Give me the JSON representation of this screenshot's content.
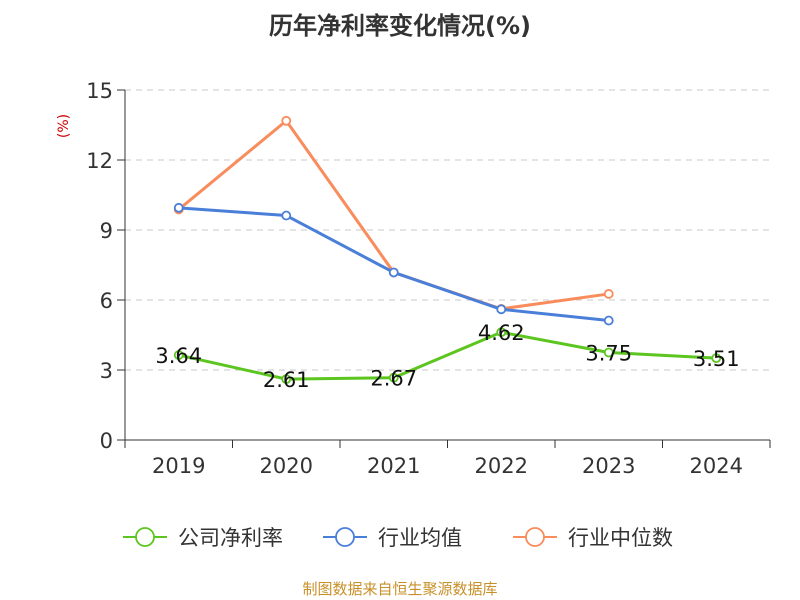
{
  "chart_data": {
    "type": "line",
    "title": "历年净利率变化情况(%)",
    "ylabel": "(%)",
    "xlabel": "",
    "categories": [
      "2019",
      "2020",
      "2021",
      "2022",
      "2023",
      "2024"
    ],
    "ylim": [
      0,
      15
    ],
    "yticks": [
      0,
      3,
      6,
      9,
      12,
      15
    ],
    "grid": true,
    "legend_position": "bottom",
    "source": "制图数据来自恒生聚源数据库",
    "series": [
      {
        "name": "公司净利率",
        "color": "#5cc51f",
        "values": [
          3.64,
          2.61,
          2.67,
          4.62,
          3.75,
          3.51
        ],
        "labels": [
          "3.64",
          "2.61",
          "2.67",
          "4.62",
          "3.75",
          "3.51"
        ]
      },
      {
        "name": "行业均值",
        "color": "#4a7fd9",
        "values": [
          9.95,
          9.62,
          7.18,
          5.6,
          5.12,
          null
        ]
      },
      {
        "name": "行业中位数",
        "color": "#f98c5c",
        "values": [
          9.88,
          13.68,
          7.18,
          5.62,
          6.26,
          null
        ]
      }
    ]
  }
}
